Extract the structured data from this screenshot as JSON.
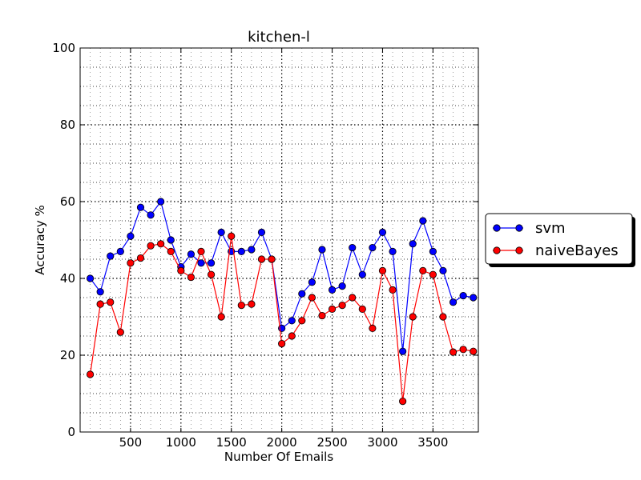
{
  "chart_data": {
    "type": "line",
    "title": "kitchen-l",
    "xlabel": "Number Of Emails",
    "ylabel": "Accuracy %",
    "xlim": [
      0,
      3950
    ],
    "ylim": [
      0,
      100
    ],
    "xticks": [
      500,
      1000,
      1500,
      2000,
      2500,
      3000,
      3500
    ],
    "yticks": [
      0,
      20,
      40,
      60,
      80,
      100
    ],
    "grid": true,
    "legend_position": "right",
    "x": [
      100,
      200,
      300,
      400,
      500,
      600,
      700,
      800,
      900,
      1000,
      1100,
      1200,
      1300,
      1400,
      1500,
      1600,
      1700,
      1800,
      1900,
      2000,
      2100,
      2200,
      2300,
      2400,
      2500,
      2600,
      2700,
      2800,
      2900,
      3000,
      3100,
      3200,
      3300,
      3400,
      3500,
      3600,
      3700,
      3800,
      3900
    ],
    "series": [
      {
        "name": "svm",
        "color": "#0000ff",
        "values": [
          40,
          36.5,
          45.8,
          47,
          51,
          58.5,
          56.5,
          60,
          50,
          43,
          46.3,
          44,
          44,
          52,
          47,
          47,
          47.5,
          52,
          45,
          27,
          29,
          36,
          39,
          47.5,
          37,
          38,
          48,
          41,
          48,
          52,
          47,
          21,
          49,
          55,
          47,
          42,
          33.8,
          35.5,
          35
        ]
      },
      {
        "name": "naiveBayes",
        "color": "#ff0000",
        "values": [
          15,
          33.3,
          33.8,
          26,
          44,
          45.3,
          48.5,
          49,
          47,
          42,
          40.3,
          47,
          41,
          30,
          51,
          33,
          33.3,
          45,
          45,
          23,
          25,
          29,
          35,
          30.3,
          32,
          33,
          35,
          32,
          27,
          42,
          37,
          8,
          30,
          42,
          41,
          30,
          20.8,
          21.5,
          21
        ]
      }
    ]
  }
}
